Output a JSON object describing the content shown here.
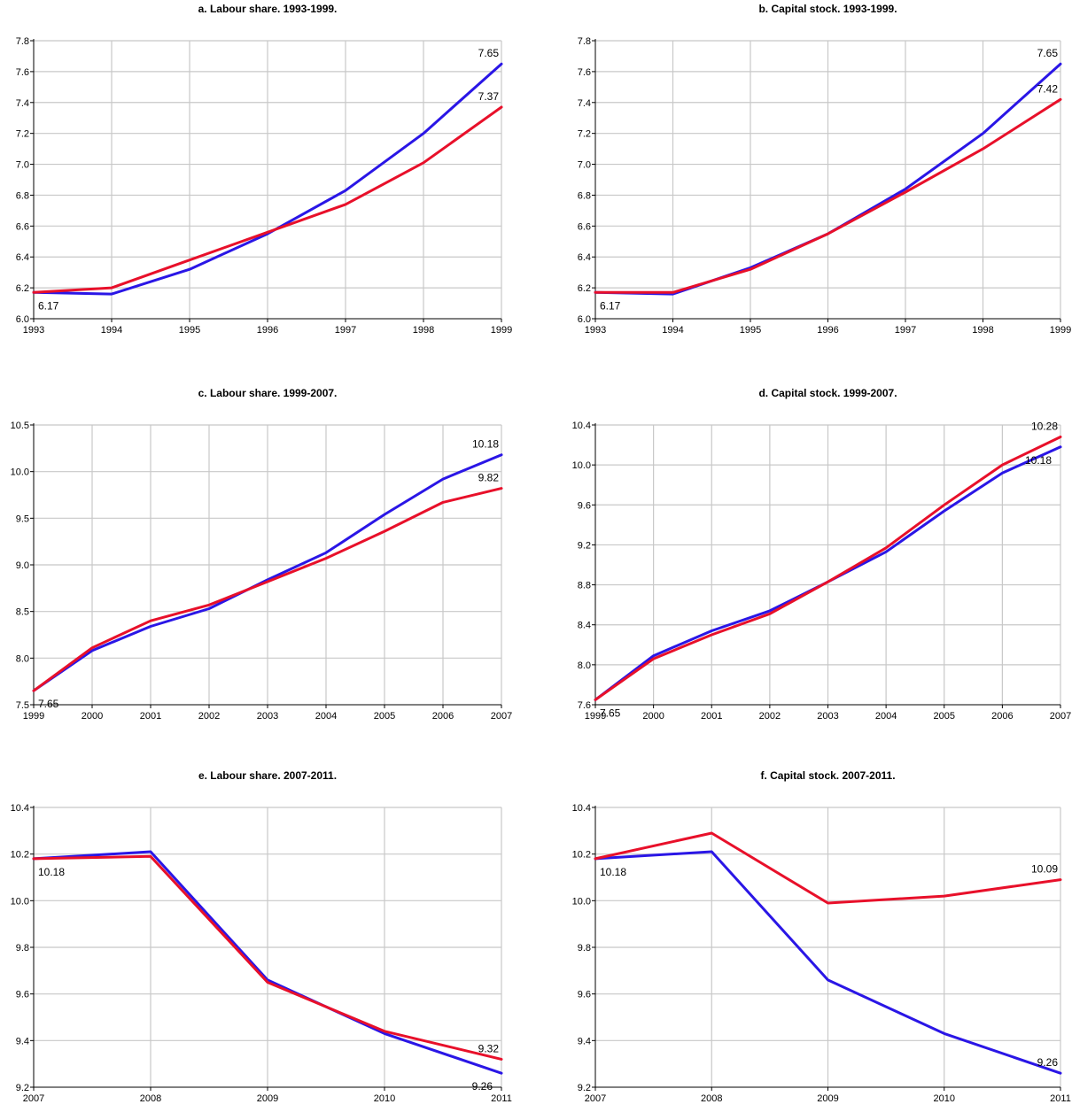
{
  "colors": {
    "blue": "#2a16e6",
    "red": "#e8102a",
    "grid": "#c8c8c8"
  },
  "chart_data": [
    {
      "type": "line",
      "title": "a. Labour share. 1993-1999.",
      "x": [
        "1993",
        "1994",
        "1995",
        "1996",
        "1997",
        "1998",
        "1999"
      ],
      "ylim": [
        6.0,
        7.8
      ],
      "yticks": [
        "6.0",
        "6.2",
        "6.4",
        "6.6",
        "6.8",
        "7.0",
        "7.2",
        "7.4",
        "7.6",
        "7.8"
      ],
      "grid": true,
      "series": [
        {
          "color": "#2a16e6",
          "values": [
            6.17,
            6.16,
            6.32,
            6.55,
            6.83,
            7.2,
            7.65
          ]
        },
        {
          "color": "#e8102a",
          "values": [
            6.17,
            6.2,
            6.38,
            6.56,
            6.74,
            7.01,
            7.37
          ]
        }
      ],
      "annotations": [
        {
          "text": "6.17",
          "x": "1993",
          "y": 6.17,
          "pos": "below-right"
        },
        {
          "text": "7.65",
          "x": "1999",
          "y": 7.65,
          "pos": "above-left"
        },
        {
          "text": "7.37",
          "x": "1999",
          "y": 7.37,
          "pos": "above-left"
        }
      ]
    },
    {
      "type": "line",
      "title": "b. Capital stock. 1993-1999.",
      "x": [
        "1993",
        "1994",
        "1995",
        "1996",
        "1997",
        "1998",
        "1999"
      ],
      "ylim": [
        6.0,
        7.8
      ],
      "yticks": [
        "6.0",
        "6.2",
        "6.4",
        "6.6",
        "6.8",
        "7.0",
        "7.2",
        "7.4",
        "7.6",
        "7.8"
      ],
      "grid": true,
      "series": [
        {
          "color": "#2a16e6",
          "values": [
            6.17,
            6.16,
            6.33,
            6.55,
            6.84,
            7.2,
            7.65
          ]
        },
        {
          "color": "#e8102a",
          "values": [
            6.17,
            6.17,
            6.32,
            6.55,
            6.82,
            7.1,
            7.42
          ]
        }
      ],
      "annotations": [
        {
          "text": "6.17",
          "x": "1993",
          "y": 6.17,
          "pos": "below-right"
        },
        {
          "text": "7.65",
          "x": "1999",
          "y": 7.65,
          "pos": "above-left"
        },
        {
          "text": "7.42",
          "x": "1999",
          "y": 7.42,
          "pos": "above-left"
        }
      ]
    },
    {
      "type": "line",
      "title": "c. Labour share. 1999-2007.",
      "x": [
        "1999",
        "2000",
        "2001",
        "2002",
        "2003",
        "2004",
        "2005",
        "2006",
        "2007"
      ],
      "ylim": [
        7.5,
        10.5
      ],
      "yticks": [
        "7.5",
        "8.0",
        "8.5",
        "9.0",
        "9.5",
        "10.0",
        "10.5"
      ],
      "grid": true,
      "series": [
        {
          "color": "#2a16e6",
          "values": [
            7.65,
            8.08,
            8.34,
            8.53,
            8.84,
            9.13,
            9.54,
            9.92,
            10.18
          ]
        },
        {
          "color": "#e8102a",
          "values": [
            7.65,
            8.11,
            8.4,
            8.57,
            8.82,
            9.07,
            9.36,
            9.67,
            9.82
          ]
        }
      ],
      "annotations": [
        {
          "text": "7.65",
          "x": "1999",
          "y": 7.65,
          "pos": "below-right"
        },
        {
          "text": "10.18",
          "x": "2007",
          "y": 10.18,
          "pos": "above-left"
        },
        {
          "text": "9.82",
          "x": "2007",
          "y": 9.82,
          "pos": "above-left"
        }
      ]
    },
    {
      "type": "line",
      "title": "d. Capital stock. 1999-2007.",
      "x": [
        "1999",
        "2000",
        "2001",
        "2002",
        "2003",
        "2004",
        "2005",
        "2006",
        "2007"
      ],
      "ylim": [
        7.6,
        10.4
      ],
      "yticks": [
        "7.6",
        "8.0",
        "8.4",
        "8.8",
        "9.2",
        "9.6",
        "10.0",
        "10.4"
      ],
      "grid": true,
      "series": [
        {
          "color": "#2a16e6",
          "values": [
            7.65,
            8.09,
            8.34,
            8.54,
            8.83,
            9.13,
            9.54,
            9.92,
            10.18
          ]
        },
        {
          "color": "#e8102a",
          "values": [
            7.65,
            8.06,
            8.3,
            8.51,
            8.83,
            9.17,
            9.6,
            10.0,
            10.28
          ]
        }
      ],
      "annotations": [
        {
          "text": "7.65",
          "x": "1999",
          "y": 7.65,
          "pos": "below-right"
        },
        {
          "text": "10.28",
          "x": "2007",
          "y": 10.28,
          "pos": "above-left"
        },
        {
          "text": "10.18",
          "x": "2007",
          "y": 10.18,
          "pos": "below-left"
        }
      ]
    },
    {
      "type": "line",
      "title": "e. Labour share. 2007-2011.",
      "x": [
        "2007",
        "2008",
        "2009",
        "2010",
        "2011"
      ],
      "ylim": [
        9.2,
        10.4
      ],
      "yticks": [
        "9.2",
        "9.4",
        "9.6",
        "9.8",
        "10.0",
        "10.2",
        "10.4"
      ],
      "grid": true,
      "series": [
        {
          "color": "#2a16e6",
          "values": [
            10.18,
            10.21,
            9.66,
            9.43,
            9.26
          ]
        },
        {
          "color": "#e8102a",
          "values": [
            10.18,
            10.19,
            9.65,
            9.44,
            9.32
          ]
        }
      ],
      "annotations": [
        {
          "text": "10.18",
          "x": "2007",
          "y": 10.18,
          "pos": "below-right"
        },
        {
          "text": "9.32",
          "x": "2011",
          "y": 9.32,
          "pos": "above-left"
        },
        {
          "text": "9.26",
          "x": "2011",
          "y": 9.26,
          "pos": "below-left"
        }
      ]
    },
    {
      "type": "line",
      "title": "f. Capital stock. 2007-2011.",
      "x": [
        "2007",
        "2008",
        "2009",
        "2010",
        "2011"
      ],
      "ylim": [
        9.2,
        10.4
      ],
      "yticks": [
        "9.2",
        "9.4",
        "9.6",
        "9.8",
        "10.0",
        "10.2",
        "10.4"
      ],
      "grid": true,
      "series": [
        {
          "color": "#2a16e6",
          "values": [
            10.18,
            10.21,
            9.66,
            9.43,
            9.26
          ]
        },
        {
          "color": "#e8102a",
          "values": [
            10.18,
            10.29,
            9.99,
            10.02,
            10.09
          ]
        }
      ],
      "annotations": [
        {
          "text": "10.18",
          "x": "2007",
          "y": 10.18,
          "pos": "below-right"
        },
        {
          "text": "10.09",
          "x": "2011",
          "y": 10.09,
          "pos": "above-left"
        },
        {
          "text": "9.26",
          "x": "2011",
          "y": 9.26,
          "pos": "above-left"
        }
      ]
    }
  ]
}
